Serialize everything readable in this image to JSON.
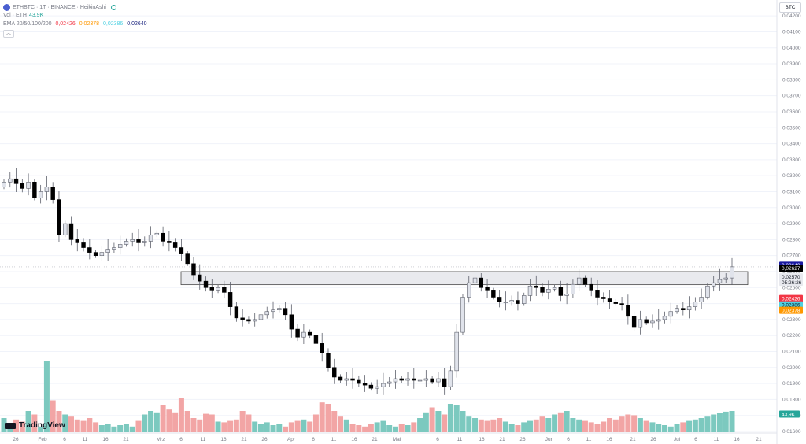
{
  "header": {
    "symbol": "ETHBTC · 1T · BINANCE · HeikinAshi",
    "volume_label": "Vol · ETH",
    "volume_value": "43,9K",
    "ema_label": "EMA 20/50/100/200",
    "ema_values": [
      "0,02426",
      "0,02378",
      "0,02386",
      "0,02640"
    ],
    "ema_colors": [
      "#f23645",
      "#ff9800",
      "#4dd0e1",
      "#1a237e"
    ]
  },
  "currency": "BTC",
  "logo_text": "TradingView",
  "colors": {
    "up_body": "#e0e3eb",
    "down_body": "#000000",
    "wick": "#5d606b",
    "vol_up": "#7cc9bf",
    "vol_down": "#f2a5a5",
    "zone_fill": "#e1e3e8",
    "zone_stroke": "#4a4a4a",
    "axis_text": "#787b86",
    "grid": "#f0f3fa"
  },
  "chart_data": {
    "type": "candlestick",
    "ylim": [
      0.016,
      0.0425
    ],
    "yticks": [
      "0,04200",
      "0,04100",
      "0,04000",
      "0,03900",
      "0,03800",
      "0,03700",
      "0,03600",
      "0,03500",
      "0,03400",
      "0,03300",
      "0,03200",
      "0,03100",
      "0,03000",
      "0,02900",
      "0,02800",
      "0,02700",
      "0,02600",
      "0,02500",
      "0,02400",
      "0,02300",
      "0,02200",
      "0,02100",
      "0,02000",
      "0,01900",
      "0,01800",
      "0,01700",
      "0,01600"
    ],
    "xticks": [
      "26",
      "Feb",
      "6",
      "11",
      "16",
      "21",
      "Mrz",
      "6",
      "11",
      "16",
      "21",
      "26",
      "Apr",
      "6",
      "11",
      "16",
      "21",
      "Mai",
      "6",
      "11",
      "16",
      "21",
      "26",
      "Jun",
      "6",
      "11",
      "16",
      "21",
      "26",
      "Jul",
      "6",
      "11",
      "16",
      "21"
    ],
    "zone": {
      "high": 0.026,
      "low": 0.02518
    },
    "price_labels": [
      {
        "text": "0,02640",
        "value": 0.0264,
        "bg": "#1a1aa0",
        "fg": "#ffffff"
      },
      {
        "text": "0,02627",
        "value": 0.0262,
        "bg": "#000000",
        "fg": "#ffffff"
      },
      {
        "text": "0,02570",
        "value": 0.02567,
        "bg": "#e8e9ee",
        "fg": "#131722"
      },
      {
        "text": "05:26:26",
        "value": 0.02533,
        "bg": "#e8e9ee",
        "fg": "#131722"
      },
      {
        "text": "0,02426",
        "value": 0.02432,
        "bg": "#f23645",
        "fg": "#ffffff"
      },
      {
        "text": "0,02386",
        "value": 0.02392,
        "bg": "#4dd0e1",
        "fg": "#131722"
      },
      {
        "text": "0,02378",
        "value": 0.02358,
        "bg": "#ff9800",
        "fg": "#ffffff"
      }
    ],
    "volume_label": "43,9K",
    "closes": [
      0.0316,
      0.0318,
      0.0315,
      0.0312,
      0.0316,
      0.0306,
      0.031,
      0.0313,
      0.0305,
      0.0283,
      0.029,
      0.028,
      0.0278,
      0.0275,
      0.0272,
      0.027,
      0.0272,
      0.0274,
      0.0275,
      0.0277,
      0.0279,
      0.028,
      0.0278,
      0.0279,
      0.0283,
      0.0284,
      0.0279,
      0.0278,
      0.0275,
      0.0271,
      0.0265,
      0.0258,
      0.0254,
      0.025,
      0.0248,
      0.025,
      0.0247,
      0.0238,
      0.0231,
      0.023,
      0.0229,
      0.023,
      0.0233,
      0.0235,
      0.0236,
      0.0237,
      0.0233,
      0.0224,
      0.0219,
      0.0222,
      0.022,
      0.0215,
      0.0209,
      0.02,
      0.0194,
      0.0192,
      0.0193,
      0.0192,
      0.019,
      0.0189,
      0.0187,
      0.0188,
      0.019,
      0.0191,
      0.0193,
      0.0192,
      0.0193,
      0.0192,
      0.0192,
      0.0193,
      0.0191,
      0.0193,
      0.0188,
      0.0198,
      0.0222,
      0.0244,
      0.0253,
      0.0256,
      0.025,
      0.0248,
      0.0244,
      0.0241,
      0.0241,
      0.0242,
      0.024,
      0.0245,
      0.0251,
      0.025,
      0.0247,
      0.0249,
      0.025,
      0.0245,
      0.0246,
      0.0252,
      0.0256,
      0.0252,
      0.0248,
      0.0244,
      0.0243,
      0.0241,
      0.024,
      0.0239,
      0.0232,
      0.0225,
      0.023,
      0.0228,
      0.0229,
      0.023,
      0.0232,
      0.0235,
      0.0237,
      0.0236,
      0.0238,
      0.0241,
      0.0244,
      0.0251,
      0.0253,
      0.0255,
      0.0256,
      0.0263
    ],
    "volumes": [
      20,
      12,
      18,
      15,
      30,
      25,
      8,
      100,
      45,
      30,
      25,
      22,
      18,
      16,
      20,
      14,
      10,
      12,
      8,
      10,
      12,
      8,
      16,
      25,
      30,
      28,
      38,
      32,
      28,
      48,
      30,
      20,
      18,
      26,
      25,
      15,
      14,
      16,
      18,
      30,
      25,
      15,
      12,
      14,
      10,
      12,
      8,
      14,
      16,
      18,
      15,
      25,
      42,
      40,
      30,
      22,
      18,
      12,
      10,
      8,
      12,
      14,
      16,
      10,
      8,
      12,
      10,
      14,
      20,
      28,
      35,
      30,
      25,
      40,
      38,
      30,
      22,
      20,
      18,
      16,
      18,
      20,
      15,
      12,
      10,
      14,
      16,
      18,
      22,
      20,
      25,
      28,
      30,
      20,
      18,
      16,
      14,
      12,
      15,
      20,
      18,
      22,
      25,
      24,
      20,
      16,
      14,
      12,
      10,
      8,
      12,
      14,
      16,
      18,
      20,
      22,
      25,
      27,
      29,
      30
    ]
  }
}
